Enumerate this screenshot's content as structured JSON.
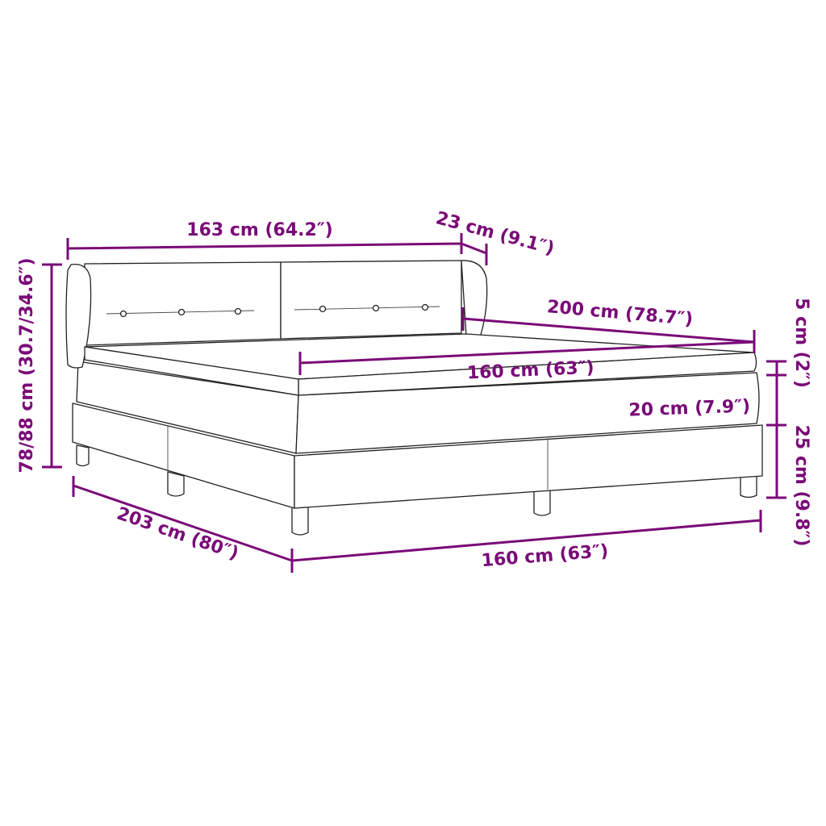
{
  "accent_color": "#7a0a78",
  "dimensions": {
    "headboard_width": "163 cm (64.2″)",
    "headboard_depth": "23 cm (9.1″)",
    "total_height": "78/88 cm (30.7/34.6″)",
    "mattress_length": "200 cm (78.7″)",
    "mattress_width": "160 cm (63″)",
    "topper_height": "5 cm (2″)",
    "mattress_height": "20 cm (7.9″)",
    "base_height": "25 cm (9.8″)",
    "base_width": "160 cm (63″)",
    "total_length": "203 cm (80″)"
  }
}
